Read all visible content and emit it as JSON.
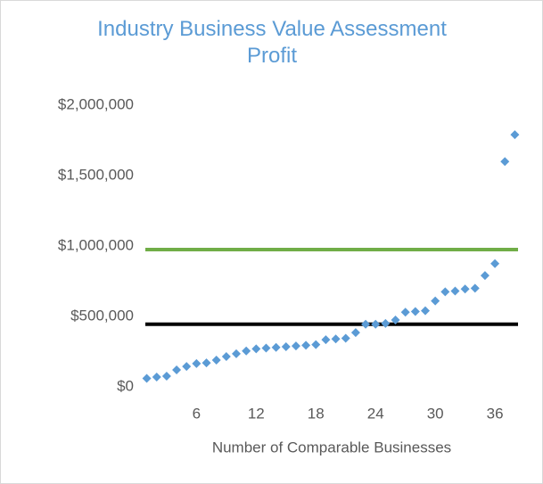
{
  "chart_data": {
    "type": "scatter",
    "title": "Industry Business Value Assessment Profit",
    "x_label": "Number of Comparable Businesses",
    "x": [
      1,
      2,
      3,
      4,
      5,
      6,
      7,
      8,
      9,
      10,
      11,
      12,
      13,
      14,
      15,
      16,
      17,
      18,
      19,
      20,
      21,
      22,
      23,
      24,
      25,
      26,
      27,
      28,
      29,
      30,
      31,
      32,
      33,
      34,
      35,
      36,
      37,
      38
    ],
    "values": [
      60000,
      70000,
      76000,
      120000,
      145000,
      165000,
      170000,
      190000,
      215000,
      235000,
      255000,
      270000,
      275000,
      280000,
      285000,
      290000,
      295000,
      300000,
      335000,
      340000,
      345000,
      385000,
      445000,
      445000,
      450000,
      475000,
      530000,
      535000,
      540000,
      610000,
      675000,
      680000,
      695000,
      700000,
      790000,
      875000,
      1600000,
      1790000
    ],
    "color": "#5b9bd5",
    "reference_lines": [
      {
        "value": 975000,
        "color": "#70ad47"
      },
      {
        "value": 445000,
        "color": "#000000"
      }
    ],
    "xlim": [
      0.5,
      38.5
    ],
    "xticks": [
      6,
      12,
      18,
      24,
      30,
      36
    ],
    "ylim": [
      0,
      2000000
    ],
    "yticks": [
      {
        "value": 0,
        "label": "$0"
      },
      {
        "value": 500000,
        "label": "$500,000"
      },
      {
        "value": 1000000,
        "label": "$1,000,000"
      },
      {
        "value": 1500000,
        "label": "$1,500,000"
      },
      {
        "value": 2000000,
        "label": "$2,000,000"
      }
    ],
    "grid": false
  }
}
